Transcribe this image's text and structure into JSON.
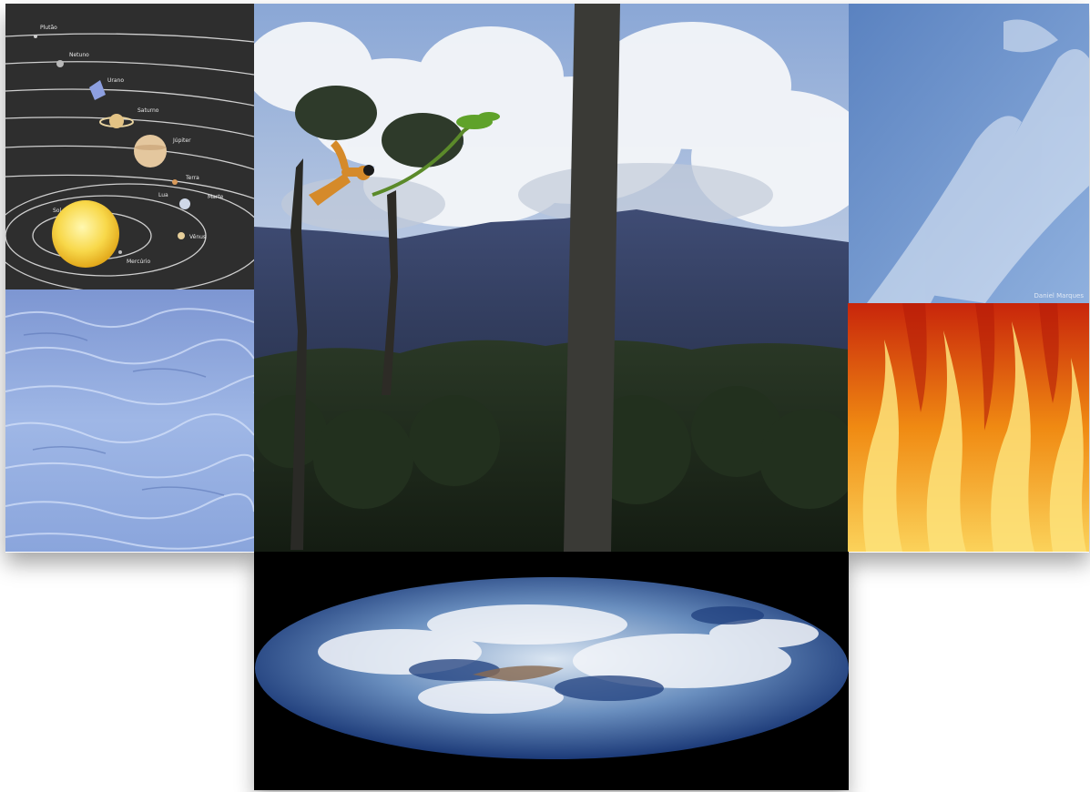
{
  "collage": {
    "tiles": [
      {
        "id": "solar-system",
        "icon": "solar-system-icon"
      },
      {
        "id": "rainforest",
        "icon": "forest-scene-icon"
      },
      {
        "id": "sky",
        "icon": "sky-clouds-icon"
      },
      {
        "id": "water",
        "icon": "water-icon"
      },
      {
        "id": "fire",
        "icon": "fire-icon"
      },
      {
        "id": "earth",
        "icon": "earth-icon"
      }
    ],
    "solar_labels": {
      "pluto": "Plutão",
      "neptune": "Netuno",
      "uranus": "Urano",
      "saturn": "Saturno",
      "jupiter": "Júpiter",
      "earth": "Terra",
      "moon": "Lua",
      "mars": "Marte",
      "venus": "Vênus",
      "mercury": "Mercúrio",
      "sun": "Sol"
    },
    "sky_caption": "Daniel Marques"
  },
  "colors": {
    "space": "#2e2e2e",
    "sky": "#6f95c9",
    "water": "#8ea9dc",
    "fire": "#f5a21a",
    "mountain": "#3d4a6e",
    "forest": "#1f2a1b"
  }
}
